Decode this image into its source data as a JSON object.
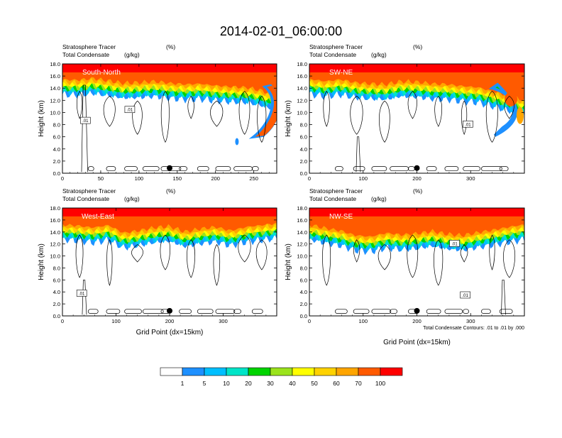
{
  "title": "2014-02-01_06:00:00",
  "colors": {
    "levels": [
      "#ffffff",
      "#1e90ff",
      "#00bfff",
      "#00e5c8",
      "#00d400",
      "#9be31c",
      "#ffff00",
      "#ffd200",
      "#ffa500",
      "#ff5a00",
      "#ff0000"
    ],
    "contour_line": "#000000",
    "marker": "#000000"
  },
  "colorbar": {
    "labels": [
      "1",
      "5",
      "10",
      "20",
      "30",
      "40",
      "50",
      "60",
      "70",
      "100"
    ]
  },
  "chart_data": [
    {
      "type": "heatmap",
      "panel": "top-left",
      "label": "South-North",
      "title_left_1": "Stratosphere Tracer",
      "units_1": "(%)",
      "title_left_2": "Total Condensate",
      "units_2": "(g/kg)",
      "ylabel": "Height (km)",
      "xlabel": "",
      "x_ticks": [
        0,
        50,
        100,
        150,
        200,
        250
      ],
      "xlim": [
        0,
        280
      ],
      "y_ticks": [
        "0.0",
        "2.0",
        "4.0",
        "6.0",
        "8.0",
        "10.0",
        "12.0",
        "14.0",
        "16.0",
        "18.0"
      ],
      "ylim": [
        0,
        18
      ],
      "marker_x": 140,
      "contour_labels": [
        ".01",
        ".01"
      ],
      "stratosphere_top_km": [
        16.2,
        16.1,
        16.4,
        16.0,
        15.6,
        15.7,
        15.9,
        15.6,
        15.4,
        15.5,
        15.2,
        15.0,
        14.9,
        14.4,
        13.5
      ],
      "intrusion": "right"
    },
    {
      "type": "heatmap",
      "panel": "top-right",
      "label": "SW-NE",
      "title_left_1": "Stratosphere Tracer",
      "units_1": "(%)",
      "title_left_2": "Total Condensate",
      "units_2": "(g/kg)",
      "ylabel": "Height (km)",
      "xlabel": "",
      "x_ticks": [
        0,
        100,
        200,
        300
      ],
      "xlim": [
        0,
        400
      ],
      "y_ticks": [
        "0.0",
        "2.0",
        "4.0",
        "6.0",
        "8.0",
        "10.0",
        "12.0",
        "14.0",
        "16.0",
        "18.0"
      ],
      "ylim": [
        0,
        18
      ],
      "marker_x": 200,
      "contour_labels": [
        ".01"
      ],
      "stratosphere_top_km": [
        16.3,
        15.9,
        16.2,
        15.7,
        15.5,
        15.4,
        15.9,
        15.8,
        15.5,
        15.4,
        15.1,
        14.9,
        14.2,
        13.5,
        12.8
      ],
      "intrusion": "right-fold"
    },
    {
      "type": "heatmap",
      "panel": "bottom-left",
      "label": "West-East",
      "title_left_1": "Stratosphere Tracer",
      "units_1": "(%)",
      "title_left_2": "Total Condensate",
      "units_2": "(g/kg)",
      "ylabel": "Height (km)",
      "xlabel": "Grid Point (dx=15km)",
      "x_ticks": [
        0,
        100,
        200,
        300
      ],
      "xlim": [
        0,
        400
      ],
      "y_ticks": [
        "0.0",
        "2.0",
        "4.0",
        "6.0",
        "8.0",
        "10.0",
        "12.0",
        "14.0",
        "16.0",
        "18.0"
      ],
      "ylim": [
        0,
        18
      ],
      "marker_x": 200,
      "contour_labels": [
        ".01"
      ],
      "stratosphere_top_km": [
        16.0,
        15.8,
        15.5,
        15.9,
        14.6,
        15.0,
        15.5,
        15.7,
        14.8,
        15.3,
        15.6,
        15.0,
        15.6,
        15.9,
        16.2
      ],
      "intrusion": "none"
    },
    {
      "type": "heatmap",
      "panel": "bottom-right",
      "label": "NW-SE",
      "title_left_1": "Stratosphere Tracer",
      "units_1": "(%)",
      "title_left_2": "Total Condensate",
      "units_2": "(g/kg)",
      "ylabel": "Height (km)",
      "xlabel": "Grid Point (dx=15km)",
      "x_ticks": [
        0,
        100,
        200,
        300
      ],
      "xlim": [
        0,
        400
      ],
      "y_ticks": [
        "0.0",
        "2.0",
        "4.0",
        "6.0",
        "8.0",
        "10.0",
        "12.0",
        "14.0",
        "16.0",
        "18.0"
      ],
      "ylim": [
        0,
        18
      ],
      "marker_x": 200,
      "contour_labels": [
        ".01",
        ".01"
      ],
      "stratosphere_top_km": [
        16.0,
        15.4,
        15.0,
        14.2,
        14.0,
        14.6,
        14.3,
        14.5,
        14.9,
        14.4,
        14.2,
        14.7,
        15.1,
        15.6,
        16.0
      ],
      "intrusion": "none",
      "footnote": "Total Condensate Contours: .01 to .01 by .000"
    }
  ]
}
